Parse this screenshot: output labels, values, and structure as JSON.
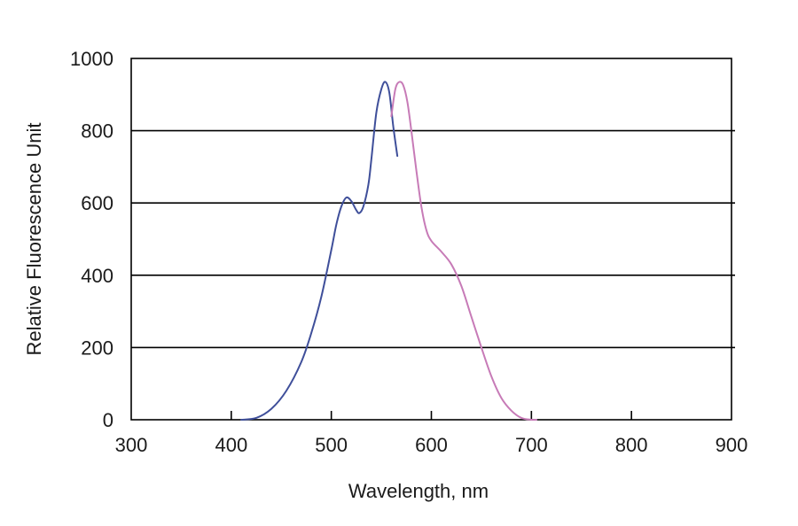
{
  "chart_data": {
    "type": "line",
    "title": "",
    "xlabel": "Wavelength, nm",
    "ylabel": "Relative Fluorescence Unit",
    "xlim": [
      300,
      900
    ],
    "ylim": [
      0,
      1000
    ],
    "x_ticks": [
      300,
      400,
      500,
      600,
      700,
      800,
      900
    ],
    "y_ticks": [
      0,
      200,
      400,
      600,
      800,
      1000
    ],
    "grid": "horizontal",
    "legend": "none",
    "series": [
      {
        "color": "#3f4f9a",
        "x": [
          410,
          425,
          440,
          455,
          470,
          480,
          490,
          500,
          505,
          510,
          515,
          520,
          525,
          528,
          532,
          537,
          540,
          545,
          550,
          554,
          558,
          562,
          566
        ],
        "y": [
          0,
          5,
          30,
          80,
          160,
          240,
          340,
          470,
          540,
          590,
          615,
          605,
          580,
          572,
          590,
          650,
          720,
          850,
          915,
          935,
          905,
          810,
          730
        ]
      },
      {
        "color": "#c77bb7",
        "x": [
          560,
          564,
          568,
          572,
          576,
          580,
          585,
          590,
          595,
          600,
          610,
          620,
          630,
          640,
          650,
          660,
          670,
          680,
          690,
          700,
          705
        ],
        "y": [
          840,
          915,
          935,
          925,
          880,
          800,
          690,
          590,
          525,
          495,
          465,
          430,
          370,
          285,
          200,
          120,
          60,
          25,
          5,
          0,
          0
        ]
      }
    ]
  }
}
